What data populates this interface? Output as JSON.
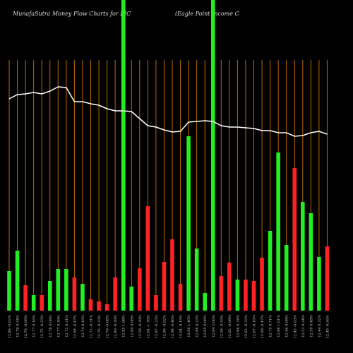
{
  "chart_data": {
    "type": "bar",
    "title": "MunafaSutra  Money Flow  Charts for EIC",
    "subtitle": "(Eagle   Point   Income   C",
    "categories": [
      "12.86 -0.62%",
      "12.79 0.24%",
      "12.76 -0.08%",
      "12.77 0.16%",
      "12.75 -0.23%",
      "12.78 0.08%",
      "12.77 0.39%",
      "12.72 0.31%",
      "12.68 -0.47%",
      "12.74 0.16%",
      "12.72 -0.31%",
      "12.76 -0.23%",
      "12.79 -0.08%",
      "12.80 -0.39%",
      "12.85 1.98%",
      "12.60 0.08%",
      "12.59 -0.39%",
      "12.64 -1.78%",
      "12.87 -0.23%",
      "12.90 -0.62%",
      "12.98 -0.46%",
      "13.04 -0.15%",
      "13.06 1.40%",
      "12.88 0.23%",
      "12.85 0.08%",
      "12.84 2.06%",
      "12.58 -0.55%",
      "12.65 -0.08%",
      "12.66 0.24%",
      "12.63 -0.32%",
      "12.67 -0.16%",
      "12.69 -0.47%",
      "12.75 0.71%",
      "12.66 1.61%",
      "12.46 0.08%",
      "12.45 -0.63%",
      "12.53 0.24%",
      "12.50 0.48%",
      "12.44 0.32%",
      "12.40 -0.56%"
    ],
    "series": [
      {
        "name": "money-flow",
        "values": [
          56,
          85,
          36,
          22,
          22,
          42,
          59,
          59,
          47,
          38,
          16,
          13,
          9,
          47,
          440,
          34,
          60,
          148,
          22,
          69,
          101,
          38,
          247,
          88,
          25,
          440,
          49,
          68,
          44,
          44,
          42,
          75,
          113,
          224,
          93,
          202,
          154,
          138,
          76,
          91
        ],
        "colors": [
          "#22ee22",
          "#22ee22",
          "#ff2222",
          "#22ee22",
          "#ff2222",
          "#22ee22",
          "#22ee22",
          "#22ee22",
          "#ff2222",
          "#22ee22",
          "#ff2222",
          "#ff2222",
          "#ff2222",
          "#ff2222",
          "#22ee22",
          "#22ee22",
          "#ff2222",
          "#ff2222",
          "#ff2222",
          "#ff2222",
          "#ff2222",
          "#ff2222",
          "#22ee22",
          "#22ee22",
          "#22ee22",
          "#22ee22",
          "#ff2222",
          "#ff2222",
          "#22ee22",
          "#ff2222",
          "#ff2222",
          "#ff2222",
          "#22ee22",
          "#22ee22",
          "#22ee22",
          "#ff2222",
          "#22ee22",
          "#22ee22",
          "#22ee22",
          "#ff2222"
        ]
      },
      {
        "name": "price",
        "type": "line",
        "color": "#ffffff",
        "values": [
          300,
          306,
          307,
          309,
          307,
          311,
          317,
          316,
          296,
          296,
          293,
          291,
          286,
          283,
          283,
          282,
          272,
          262,
          260,
          256,
          253,
          254,
          267,
          268,
          269,
          268,
          262,
          260,
          260,
          259,
          258,
          255,
          255,
          252,
          252,
          247,
          248,
          252,
          254,
          250
        ]
      }
    ],
    "ylim": [
      0,
      440
    ],
    "grid_color": "#b86a00"
  }
}
